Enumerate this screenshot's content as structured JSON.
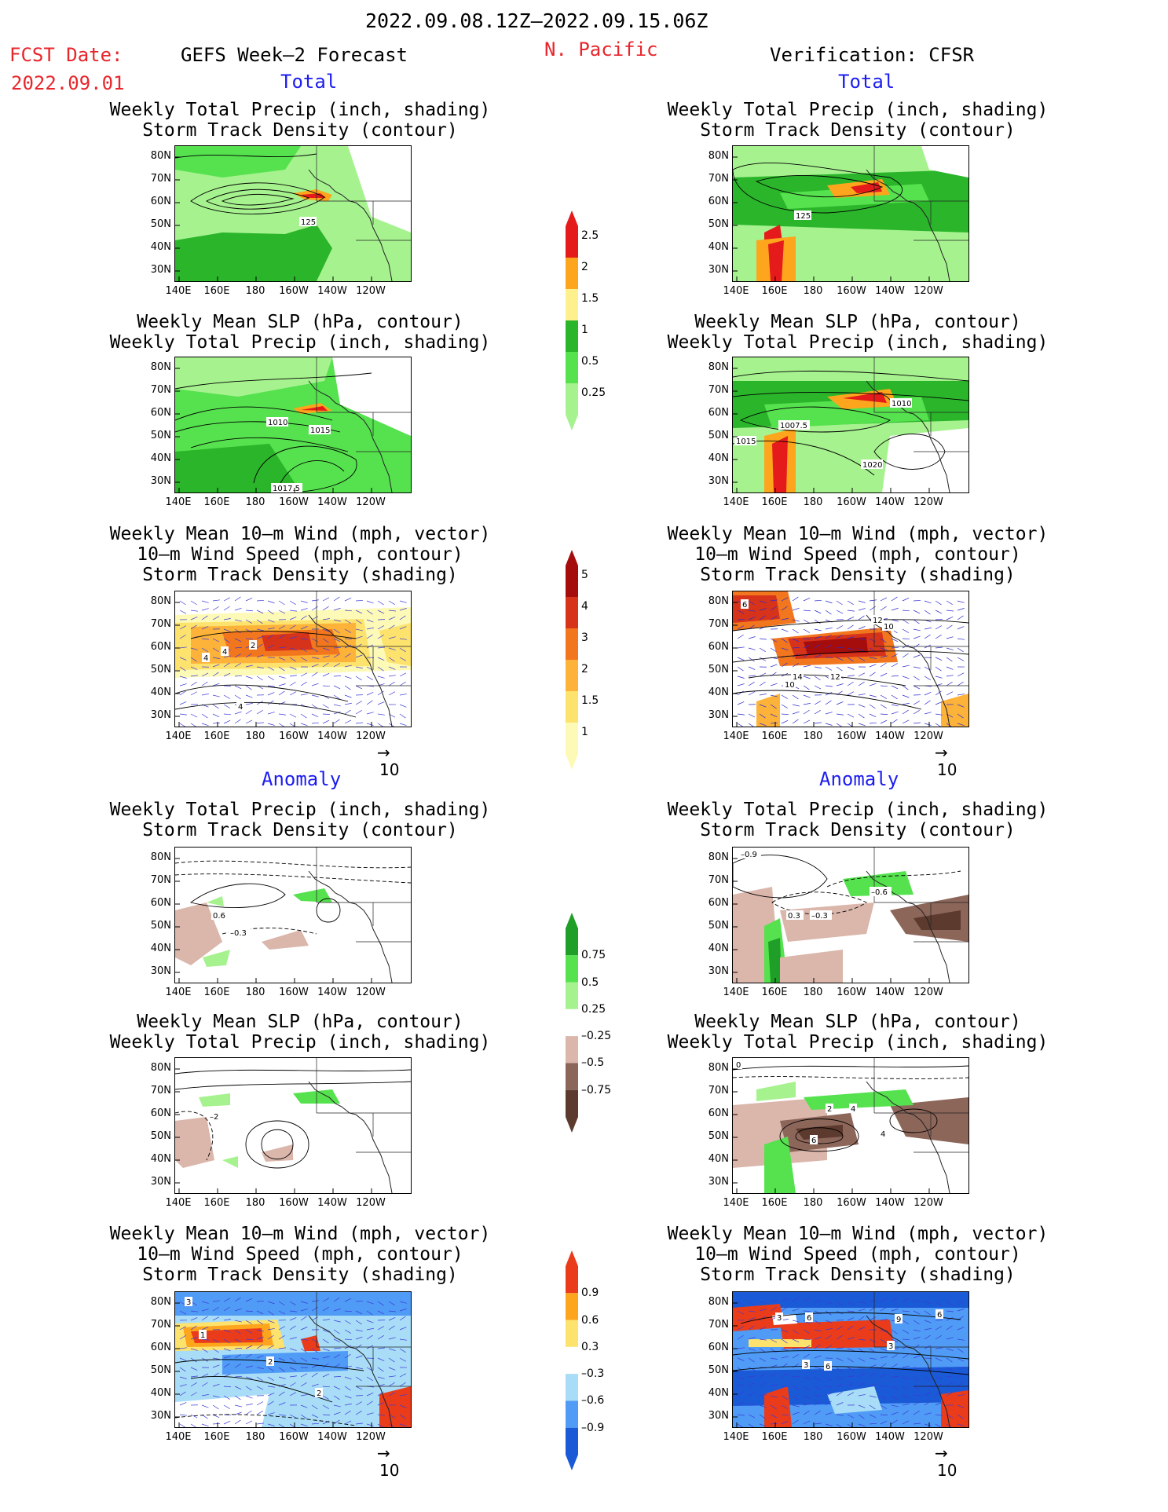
{
  "header": {
    "period": "2022.09.08.12Z–2022.09.15.06Z",
    "fcst_label": "FCST Date:",
    "fcst_date": "2022.09.01",
    "model": "GEFS Week–2 Forecast",
    "region": "N. Pacific",
    "verification": "Verification: CFSR"
  },
  "sections": {
    "total": "Total",
    "anomaly": "Anomaly"
  },
  "titles": {
    "precip_storm": "Weekly Total Precip (inch, shading)\nStorm Track Density (contour)",
    "slp_precip": "Weekly Mean SLP (hPa, contour)\nWeekly Total Precip (inch, shading)",
    "wind": "Weekly Mean 10–m Wind (mph, vector)\n10–m Wind Speed (mph, contour)\nStorm Track Density (shading)"
  },
  "axes": {
    "lat": [
      "80N",
      "70N",
      "60N",
      "50N",
      "40N",
      "30N"
    ],
    "lon": [
      "140E",
      "160E",
      "180",
      "160W",
      "140W",
      "120W"
    ]
  },
  "vector_ref": "10",
  "colorbars": {
    "precip_total": {
      "colors": [
        "#a6f28f",
        "#55e24e",
        "#2ab52a",
        "#fdf08d",
        "#fda51c",
        "#e51b1b"
      ],
      "labels": [
        "0.25",
        "0.5",
        "1",
        "1.5",
        "2",
        "2.5"
      ]
    },
    "storm_total": {
      "colors": [
        "#fdfab7",
        "#fde36e",
        "#fdb23a",
        "#f2761e",
        "#d6331a",
        "#a50d0d"
      ],
      "labels": [
        "1",
        "1.5",
        "2",
        "3",
        "4",
        "5"
      ]
    },
    "precip_anom": {
      "colors": [
        "#5c3a2e",
        "#8d665a",
        "#dab6ab",
        "#ffffff",
        "#a6f28f",
        "#55e24e",
        "#1f9e28"
      ],
      "labels": [
        "–0.75",
        "–0.5",
        "–0.25",
        "0.25",
        "0.5",
        "0.75"
      ]
    },
    "storm_anom": {
      "colors": [
        "#1a5ad6",
        "#4f9bf5",
        "#a8dcf7",
        "#ffffff",
        "#fde36e",
        "#fda51c",
        "#ea3c1b"
      ],
      "labels": [
        "–0.9",
        "–0.6",
        "–0.3",
        "0.3",
        "0.6",
        "0.9"
      ]
    }
  },
  "contour_labels": {
    "f_total_precip": [
      "125"
    ],
    "c_total_precip": [
      "125"
    ],
    "f_total_slp": [
      "1010",
      "1015",
      "1017.5"
    ],
    "c_total_slp": [
      "1010",
      "1007.5",
      "1015",
      "1020"
    ],
    "f_total_wind": [
      "2",
      "4",
      "4",
      "4"
    ],
    "c_total_wind": [
      "6",
      "12",
      "10",
      "14",
      "12",
      "10"
    ],
    "f_anom_precip": [
      "0.6",
      "–0.3"
    ],
    "c_anom_precip": [
      "–0.9",
      "–0.6",
      "0.3",
      "–0.3"
    ],
    "f_anom_slp": [
      "–2"
    ],
    "c_anom_slp": [
      "0",
      "2",
      "4",
      "6",
      "4"
    ],
    "f_anom_wind": [
      "3",
      "1",
      "2",
      "2"
    ],
    "c_anom_wind": [
      "3",
      "6",
      "9",
      "6",
      "3",
      "3",
      "6"
    ]
  }
}
